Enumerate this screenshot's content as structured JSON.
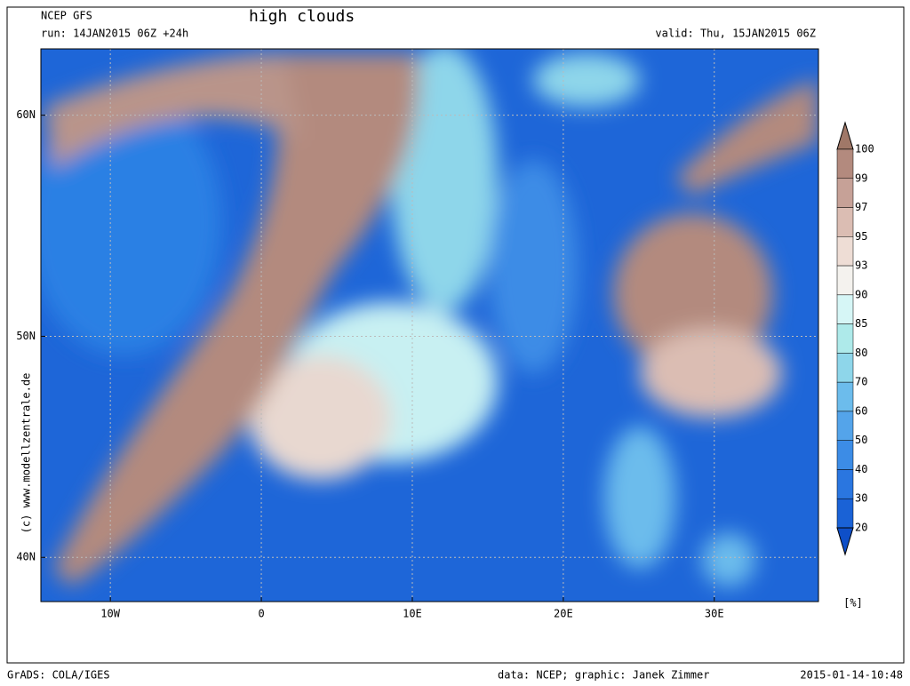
{
  "header": {
    "model": "NCEP GFS",
    "run": "run: 14JAN2015 06Z +24h",
    "title": "high clouds",
    "valid": "valid: Thu, 15JAN2015 06Z"
  },
  "map": {
    "xlim": [
      -14.6,
      36.9
    ],
    "ylim": [
      38,
      63
    ],
    "xticks": [
      {
        "value": -10,
        "label": "10W"
      },
      {
        "value": 0,
        "label": "0"
      },
      {
        "value": 10,
        "label": "10E"
      },
      {
        "value": 20,
        "label": "20E"
      },
      {
        "value": 30,
        "label": "30E"
      }
    ],
    "yticks": [
      {
        "value": 60,
        "label": "60N"
      },
      {
        "value": 50,
        "label": "50N"
      },
      {
        "value": 40,
        "label": "40N"
      }
    ],
    "grid": true
  },
  "colorbar": {
    "levels": [
      100,
      99,
      97,
      95,
      93,
      90,
      85,
      80,
      70,
      60,
      50,
      40,
      30,
      20
    ],
    "colors": [
      "#a07868",
      "#b38a7e",
      "#c6a197",
      "#dbbdb3",
      "#eeddd5",
      "#f4f2ee",
      "#d6f6f6",
      "#aeeaea",
      "#8ed6ea",
      "#6cbcec",
      "#54a4ea",
      "#3c8ce6",
      "#2a76e0",
      "#1a62d6",
      "#0e4fc8"
    ],
    "unit": "[%]"
  },
  "footer": {
    "left": "GrADS: COLA/IGES",
    "center": "data: NCEP; graphic: Janek Zimmer",
    "right": "2015-01-14-10:48",
    "side": "(c)  www.modellzentrale.de"
  }
}
